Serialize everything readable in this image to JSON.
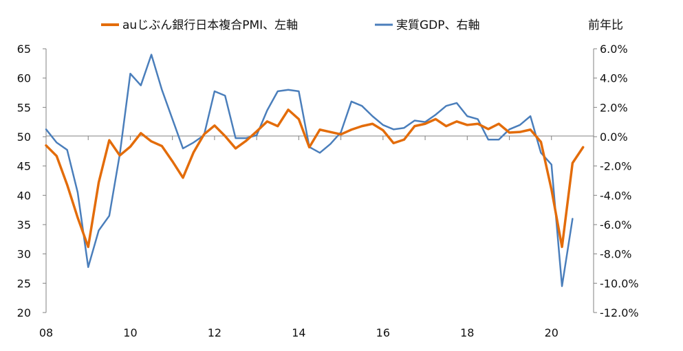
{
  "chart_data": {
    "type": "line",
    "legend": [
      {
        "label": "auじぶん銀行日本複合PMI、左軸",
        "color": "#E36C0A",
        "series": "pmi"
      },
      {
        "label": "実質GDP、右軸",
        "color": "#4A7EBB",
        "series": "gdp"
      }
    ],
    "right_axis_title": "前年比",
    "x_ticks": [
      "08",
      "10",
      "12",
      "14",
      "16",
      "18",
      "20"
    ],
    "x_range": [
      2008,
      2021
    ],
    "y_left": {
      "min": 20,
      "max": 65,
      "ticks": [
        "20",
        "25",
        "30",
        "35",
        "40",
        "45",
        "50",
        "55",
        "60",
        "65"
      ]
    },
    "y_right": {
      "min": -12,
      "max": 6,
      "ticks": [
        "6.0%",
        "4.0%",
        "2.0%",
        "0.0%",
        "-2.0%",
        "-4.0%",
        "-6.0%",
        "-8.0%",
        "-10.0%",
        "-12.0%"
      ]
    },
    "series": [
      {
        "name": "auじぶん銀行日本複合PMI、左軸",
        "key": "pmi",
        "axis": "left",
        "color": "#E36C0A",
        "x": [
          2008.0,
          2008.25,
          2008.5,
          2008.75,
          2009.0,
          2009.25,
          2009.5,
          2009.75,
          2010.0,
          2010.25,
          2010.5,
          2010.75,
          2011.0,
          2011.25,
          2011.5,
          2011.75,
          2012.0,
          2012.25,
          2012.5,
          2012.75,
          2013.0,
          2013.25,
          2013.5,
          2013.75,
          2014.0,
          2014.25,
          2014.5,
          2014.75,
          2015.0,
          2015.25,
          2015.5,
          2015.75,
          2016.0,
          2016.25,
          2016.5,
          2016.75,
          2017.0,
          2017.25,
          2017.5,
          2017.75,
          2018.0,
          2018.25,
          2018.5,
          2018.75,
          2019.0,
          2019.25,
          2019.5,
          2019.75,
          2020.0,
          2020.25,
          2020.5,
          2020.75
        ],
        "values": [
          48.5,
          46.7,
          41.8,
          36.2,
          31.2,
          42.2,
          49.4,
          46.8,
          48.3,
          50.6,
          49.2,
          48.4,
          45.8,
          43.0,
          47.3,
          50.4,
          51.9,
          50.1,
          48.0,
          49.3,
          50.9,
          52.6,
          51.8,
          54.6,
          53.0,
          48.2,
          51.2,
          50.8,
          50.4,
          51.2,
          51.8,
          52.2,
          51.1,
          48.9,
          49.5,
          51.8,
          52.2,
          53.0,
          51.8,
          52.6,
          52.0,
          52.2,
          51.3,
          52.2,
          50.7,
          50.8,
          51.2,
          49.1,
          41.0,
          31.2,
          45.5,
          48.2
        ]
      },
      {
        "name": "実質GDP、右軸",
        "key": "gdp",
        "axis": "right",
        "color": "#4A7EBB",
        "x": [
          2008.0,
          2008.25,
          2008.5,
          2008.75,
          2009.0,
          2009.25,
          2009.5,
          2009.75,
          2010.0,
          2010.25,
          2010.5,
          2010.75,
          2011.0,
          2011.25,
          2011.5,
          2011.75,
          2012.0,
          2012.25,
          2012.5,
          2012.75,
          2013.0,
          2013.25,
          2013.5,
          2013.75,
          2014.0,
          2014.25,
          2014.5,
          2014.75,
          2015.0,
          2015.25,
          2015.5,
          2015.75,
          2016.0,
          2016.25,
          2016.5,
          2016.75,
          2017.0,
          2017.25,
          2017.5,
          2017.75,
          2018.0,
          2018.25,
          2018.5,
          2018.75,
          2019.0,
          2019.25,
          2019.5,
          2019.75,
          2020.0,
          2020.25,
          2020.5
        ],
        "values": [
          0.5,
          -0.4,
          -0.9,
          -3.8,
          -8.9,
          -6.4,
          -5.4,
          -1.2,
          4.3,
          3.5,
          5.6,
          3.2,
          1.2,
          -0.8,
          -0.4,
          0.1,
          3.1,
          2.8,
          -0.1,
          -0.1,
          0.1,
          1.8,
          3.1,
          3.2,
          3.1,
          -0.7,
          -1.1,
          -0.5,
          0.3,
          2.4,
          2.1,
          1.4,
          0.8,
          0.5,
          0.6,
          1.1,
          1.0,
          1.5,
          2.1,
          2.3,
          1.4,
          1.2,
          -0.2,
          -0.2,
          0.5,
          0.8,
          1.4,
          -1.1,
          -1.9,
          -10.2,
          -5.6
        ]
      }
    ]
  }
}
